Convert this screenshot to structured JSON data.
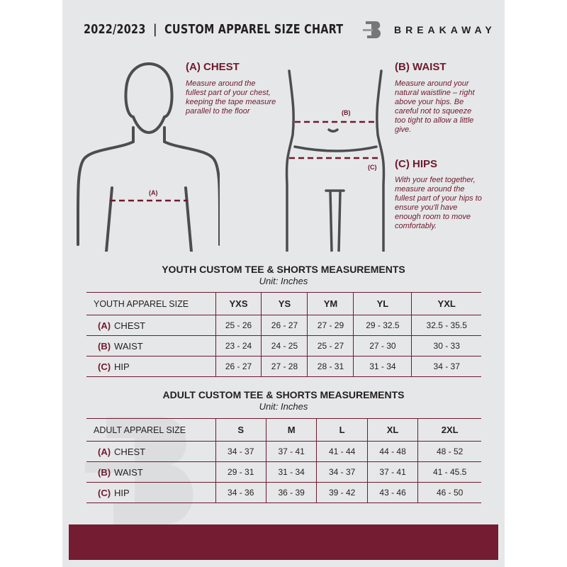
{
  "header": {
    "title": "2022/2023  |  CUSTOM APPAREL SIZE CHART",
    "brand": "BREAKAWAY",
    "logo_letter": "B"
  },
  "colors": {
    "accent": "#6e1a2e",
    "background": "#e6e7e8",
    "footer": "#731c32"
  },
  "guide": {
    "chest": {
      "title": "(A) CHEST",
      "text": "Measure around the fullest part of your chest, keeping the tape measure parallel to the floor",
      "marker": "(A)"
    },
    "waist": {
      "title": "(B) WAIST",
      "text": "Measure around your natural waistline – right above your hips. Be careful not to squeeze too tight to allow a little give.",
      "marker": "(B)"
    },
    "hips": {
      "title": "(C) HIPS",
      "text": "With your feet together, measure around the fullest part of your hips to ensure you'll have enough room to move comfortably.",
      "marker": "(C)"
    }
  },
  "youth": {
    "title": "YOUTH CUSTOM TEE & SHORTS MEASUREMENTS",
    "unit": "Unit: Inches",
    "header": [
      "YOUTH APPAREL SIZE",
      "YXS",
      "YS",
      "YM",
      "YL",
      "YXL"
    ],
    "rows": [
      {
        "letter": "(A)",
        "label": "CHEST",
        "values": [
          "25 - 26",
          "26 - 27",
          "27 - 29",
          "29 - 32.5",
          "32.5 - 35.5"
        ]
      },
      {
        "letter": "(B)",
        "label": "WAIST",
        "values": [
          "23 - 24",
          "24 - 25",
          "25 - 27",
          "27 - 30",
          "30 - 33"
        ]
      },
      {
        "letter": "(C)",
        "label": "HIP",
        "values": [
          "26 - 27",
          "27 - 28",
          "28 - 31",
          "31 - 34",
          "34 - 37"
        ]
      }
    ]
  },
  "adult": {
    "title": "ADULT CUSTOM TEE & SHORTS MEASUREMENTS",
    "unit": "Unit: Inches",
    "header": [
      "ADULT APPAREL SIZE",
      "S",
      "M",
      "L",
      "XL",
      "2XL"
    ],
    "rows": [
      {
        "letter": "(A)",
        "label": "CHEST",
        "values": [
          "34 - 37",
          "37 - 41",
          "41 - 44",
          "44 - 48",
          "48 - 52"
        ]
      },
      {
        "letter": "(B)",
        "label": "WAIST",
        "values": [
          "29 - 31",
          "31 - 34",
          "34 - 37",
          "37 - 41",
          "41 - 45.5"
        ]
      },
      {
        "letter": "(C)",
        "label": "HIP",
        "values": [
          "34 - 36",
          "36 - 39",
          "39 - 42",
          "43 - 46",
          "46 - 50"
        ]
      }
    ]
  }
}
